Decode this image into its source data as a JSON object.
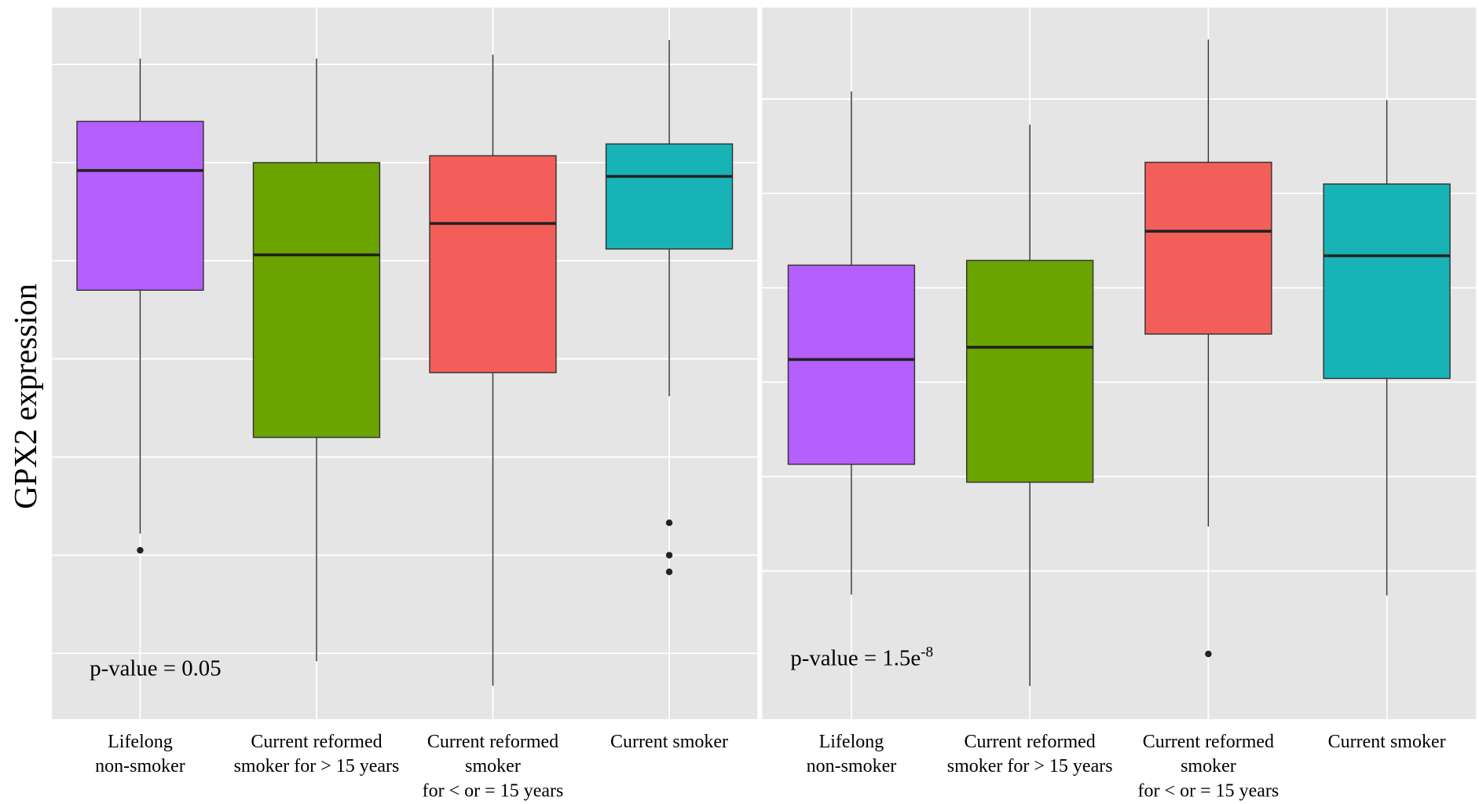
{
  "chart_data": [
    {
      "type": "box",
      "ylabel": "GPX2 expression",
      "categories": [
        [
          "Lifelong",
          "non-smoker"
        ],
        [
          "Current reformed",
          "smoker for > 15 years"
        ],
        [
          "Current reformed",
          "smoker",
          "for < or = 15 years"
        ],
        [
          "Current smoker"
        ]
      ],
      "colors": [
        "#b55ffc",
        "#6ba300",
        "#f35e5a",
        "#17b3b7"
      ],
      "boxes": [
        {
          "whisker_low": 1.22,
          "q1": 3.7,
          "median": 4.92,
          "q3": 5.42,
          "whisker_high": 6.06,
          "outliers": [
            1.05
          ]
        },
        {
          "whisker_low": -0.08,
          "q1": 2.2,
          "median": 4.06,
          "q3": 5.0,
          "whisker_high": 6.06,
          "outliers": []
        },
        {
          "whisker_low": -0.33,
          "q1": 2.86,
          "median": 4.38,
          "q3": 5.07,
          "whisker_high": 6.1,
          "outliers": []
        },
        {
          "whisker_low": 2.62,
          "q1": 4.12,
          "median": 4.86,
          "q3": 5.19,
          "whisker_high": 6.25,
          "outliers": [
            1.33,
            1.0,
            0.83
          ]
        }
      ],
      "ylim": [
        -0.67,
        6.58
      ],
      "yticks": [
        0,
        1,
        2,
        3,
        4,
        5,
        6
      ],
      "grid": true,
      "annotation": {
        "text": "p-value = 0.05",
        "superscript": null
      }
    },
    {
      "type": "box",
      "categories": [
        [
          "Lifelong",
          "non-smoker"
        ],
        [
          "Current reformed",
          "smoker for > 15 years"
        ],
        [
          "Current reformed",
          "smoker",
          "for < or = 15 years"
        ],
        [
          "Current smoker"
        ]
      ],
      "colors": [
        "#b55ffc",
        "#6ba300",
        "#f35e5a",
        "#17b3b7"
      ],
      "boxes": [
        {
          "whisker_low": -0.25,
          "q1": 1.13,
          "median": 2.24,
          "q3": 3.24,
          "whisker_high": 5.08,
          "outliers": []
        },
        {
          "whisker_low": -1.22,
          "q1": 0.94,
          "median": 2.37,
          "q3": 3.29,
          "whisker_high": 4.73,
          "outliers": []
        },
        {
          "whisker_low": 0.47,
          "q1": 2.51,
          "median": 3.6,
          "q3": 4.33,
          "whisker_high": 5.63,
          "outliers": [
            -0.88
          ]
        },
        {
          "whisker_low": -0.26,
          "q1": 2.04,
          "median": 3.34,
          "q3": 4.1,
          "whisker_high": 4.99,
          "outliers": []
        }
      ],
      "ylim": [
        -1.57,
        5.97
      ],
      "yticks": [
        0,
        1,
        2,
        3,
        4,
        5
      ],
      "grid": true,
      "annotation": {
        "text": "p-value = 1.5e",
        "superscript": "-8"
      }
    }
  ]
}
